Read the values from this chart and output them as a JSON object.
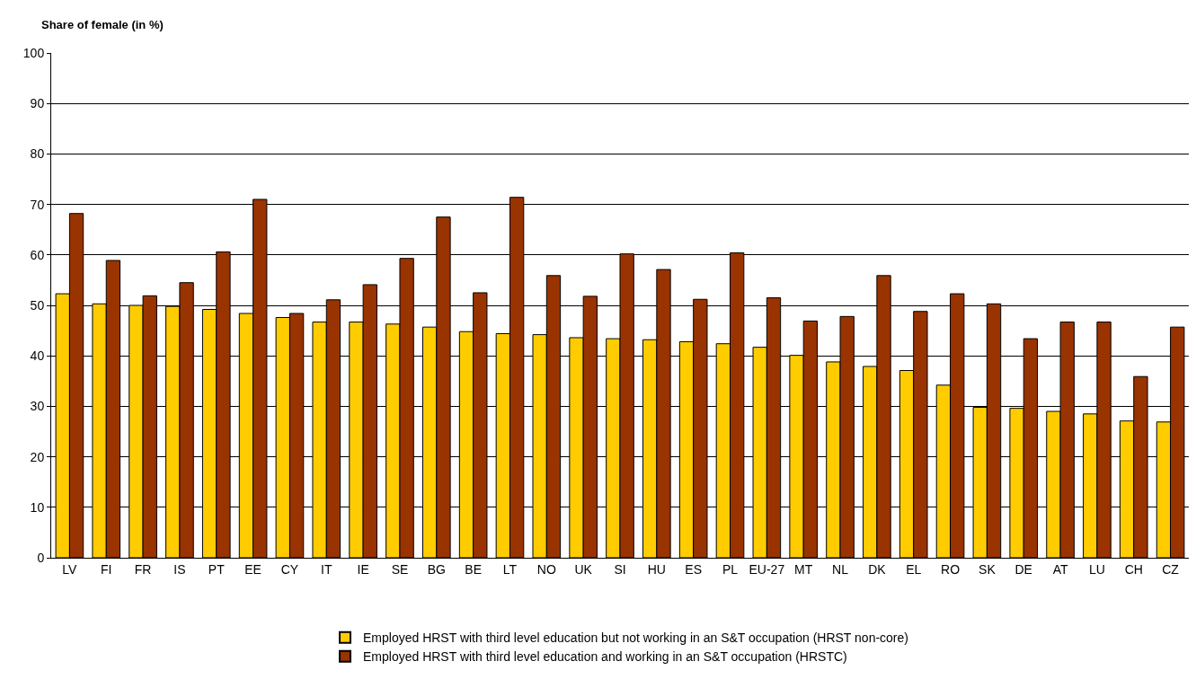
{
  "chart_data": {
    "type": "bar",
    "ylabel": "Share of female (in %)",
    "categories": [
      "LV",
      "FI",
      "FR",
      "IS",
      "PT",
      "EE",
      "CY",
      "IT",
      "IE",
      "SE",
      "BG",
      "BE",
      "LT",
      "NO",
      "UK",
      "SI",
      "HU",
      "ES",
      "PL",
      "EU-27",
      "MT",
      "NL",
      "DK",
      "EL",
      "RO",
      "SK",
      "DE",
      "AT",
      "LU",
      "CH",
      "CZ"
    ],
    "series": [
      {
        "name": "Employed HRST with third level education but not working in an S&T occupation (HRST non-core)",
        "color": "#ffcc00",
        "values": [
          52.3,
          50.3,
          50.0,
          49.8,
          49.2,
          48.4,
          47.6,
          46.7,
          46.7,
          46.3,
          45.7,
          44.8,
          44.4,
          44.2,
          43.6,
          43.4,
          43.2,
          42.8,
          42.4,
          41.7,
          40.1,
          38.8,
          37.9,
          37.1,
          34.2,
          29.8,
          29.6,
          29.0,
          28.5,
          27.1,
          26.9
        ]
      },
      {
        "name": "Employed HRST with third level education and working in an S&T occupation (HRSTC)",
        "color": "#993300",
        "values": [
          68.2,
          58.9,
          51.9,
          54.5,
          60.6,
          71.0,
          48.4,
          51.1,
          54.1,
          59.3,
          67.5,
          52.5,
          71.4,
          55.9,
          51.8,
          60.2,
          57.1,
          51.2,
          60.4,
          51.5,
          46.9,
          47.8,
          55.9,
          48.8,
          52.3,
          50.3,
          43.4,
          46.7,
          46.7,
          35.9,
          45.7
        ]
      }
    ],
    "ylim": [
      0,
      100
    ],
    "yticks": [
      0,
      10,
      20,
      30,
      40,
      50,
      60,
      70,
      80,
      90,
      100
    ],
    "grid": "y",
    "legend": "bottom"
  }
}
